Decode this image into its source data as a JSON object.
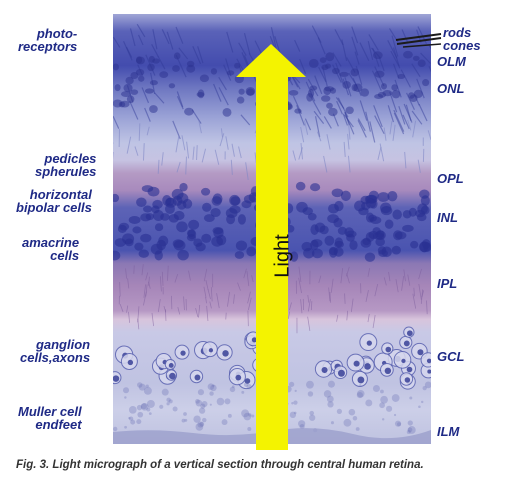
{
  "left_labels": [
    {
      "id": "photoreceptors",
      "text": "photo-\nreceptors"
    },
    {
      "id": "pedicles-spherules",
      "text": "pedicles\nspherules"
    },
    {
      "id": "horizontal-bipolar",
      "text": "horizontal\nbipolar cells"
    },
    {
      "id": "amacrine",
      "text": "amacrine\ncells"
    },
    {
      "id": "ganglion",
      "text": "ganglion\ncells,axons"
    },
    {
      "id": "muller",
      "text": "Muller cell\nendfeet"
    }
  ],
  "right_labels": [
    {
      "id": "rods-cones",
      "text": "rods\ncones"
    },
    {
      "id": "olm",
      "text": "OLM"
    },
    {
      "id": "onl",
      "text": "ONL"
    },
    {
      "id": "opl",
      "text": "OPL"
    },
    {
      "id": "inl",
      "text": "INL"
    },
    {
      "id": "ipl",
      "text": "IPL"
    },
    {
      "id": "gcl",
      "text": "GCL"
    },
    {
      "id": "ilm",
      "text": "ILM"
    }
  ],
  "arrow": {
    "label": "Light",
    "color": "#f4f300"
  },
  "caption": "Fig. 3. Light micrograph of a vertical section through central human retina.",
  "colors": {
    "label_blue": "#1f2a86",
    "photoreceptor_band": "#5a62b8",
    "onl_band": "#7a84c6",
    "pale_band": "#b7bde0",
    "opl_band": "#b49ac4",
    "inl_band": "#4a54b0",
    "ipl_band": "#a585b8",
    "gcl_band": "#c8c9e6"
  }
}
